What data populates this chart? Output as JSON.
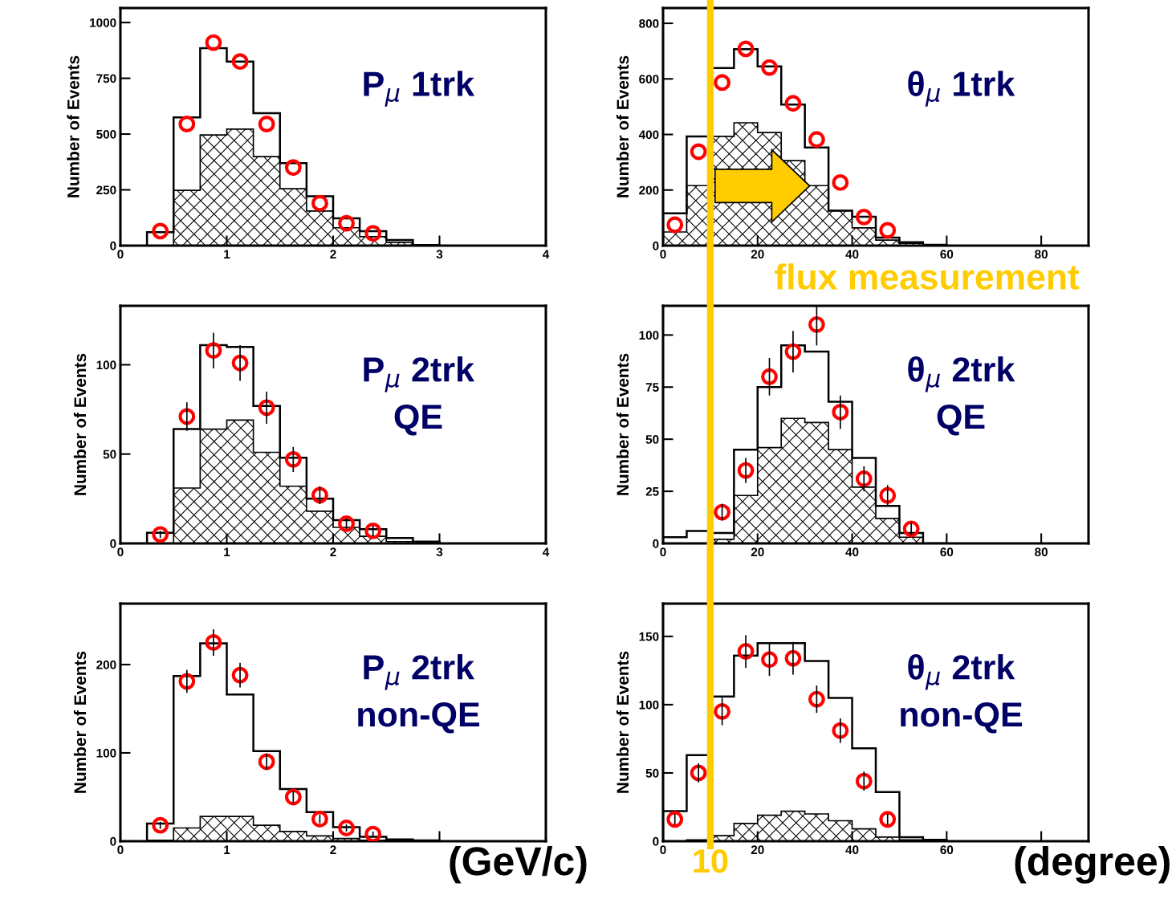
{
  "chart_data": [
    {
      "type": "histogram",
      "ylabel": "Number of Events",
      "annotations": [
        "P$_{μ}$ 1trk"
      ],
      "bins": [
        0.25,
        0.5,
        0.75,
        1.0,
        1.25,
        1.5,
        1.75,
        2.0,
        2.25,
        2.5,
        2.75,
        3.0
      ],
      "xlim": [
        0,
        4
      ],
      "xticks": [
        0,
        1,
        2,
        3,
        4
      ],
      "ylim": [
        0,
        1065
      ],
      "yticks": [
        0,
        250,
        500,
        750,
        1000
      ],
      "marker": "circle",
      "grid": false,
      "legend": false,
      "series": [
        {
          "type": "histogram",
          "color": "#000000",
          "values": [
            60,
            575,
            885,
            825,
            594,
            370,
            221,
            122,
            65,
            25,
            3
          ]
        },
        {
          "type": "histogram",
          "color": "#000000",
          "values": [
            0,
            248,
            496,
            522,
            399,
            255,
            155,
            80,
            40,
            15,
            3
          ]
        },
        {
          "type": "scatter",
          "color": "#ff0000",
          "x": [
            0.375,
            0.625,
            0.875,
            1.125,
            1.375,
            1.625,
            1.875,
            2.125,
            2.375
          ],
          "values": [
            65,
            545,
            910,
            825,
            545,
            350,
            190,
            100,
            55
          ]
        }
      ]
    },
    {
      "type": "histogram",
      "ylabel": "Number of Events",
      "annotations": [
        "θ$_{μ}$ 1trk",
        "flux measurement"
      ],
      "bins": [
        0,
        5,
        10,
        15,
        20,
        25,
        30,
        35,
        40,
        45,
        50,
        55,
        60
      ],
      "xlim": [
        0,
        90
      ],
      "xticks": [
        0,
        20,
        40,
        60,
        80
      ],
      "ylim": [
        0,
        855
      ],
      "yticks": [
        0,
        200,
        400,
        600,
        800
      ],
      "marker": "circle",
      "grid": false,
      "legend": false,
      "ref_lines": [
        {
          "axis": "x",
          "value": 10,
          "color": "#ffcc00"
        }
      ],
      "series": [
        {
          "type": "histogram",
          "color": "#000000",
          "values": [
            116,
            393,
            639,
            707,
            645,
            508,
            353,
            126,
            104,
            29,
            12,
            3
          ]
        },
        {
          "type": "histogram",
          "color": "#000000",
          "values": [
            49,
            216,
            393,
            442,
            407,
            306,
            216,
            126,
            64,
            20,
            8,
            2
          ]
        },
        {
          "type": "scatter",
          "color": "#ff0000",
          "x": [
            2.5,
            7.5,
            12.5,
            17.5,
            22.5,
            27.5,
            32.5,
            37.5,
            42.5,
            47.5
          ],
          "values": [
            75,
            338,
            587,
            708,
            641,
            512,
            382,
            227,
            103,
            55
          ]
        }
      ]
    },
    {
      "type": "histogram",
      "ylabel": "Number of Events",
      "annotations": [
        "P$_{μ}$ 2trk\nQE"
      ],
      "bins": [
        0.25,
        0.5,
        0.75,
        1.0,
        1.25,
        1.5,
        1.75,
        2.0,
        2.25,
        2.5,
        2.75,
        3.0
      ],
      "xlim": [
        0,
        4
      ],
      "xticks": [
        0,
        1,
        2,
        3,
        4
      ],
      "ylim": [
        0,
        133
      ],
      "yticks": [
        0,
        50,
        100
      ],
      "marker": "circle",
      "grid": false,
      "legend": false,
      "series": [
        {
          "type": "histogram",
          "color": "#000000",
          "values": [
            6,
            64,
            111,
            110,
            77,
            48,
            25,
            13,
            8,
            3,
            1
          ]
        },
        {
          "type": "histogram",
          "color": "#000000",
          "values": [
            0,
            31,
            64,
            69,
            51,
            32,
            18,
            9,
            4,
            1,
            0
          ]
        },
        {
          "type": "scatter",
          "color": "#ff0000",
          "x": [
            0.375,
            0.625,
            0.875,
            1.125,
            1.375,
            1.625,
            1.875,
            2.125,
            2.375
          ],
          "values": [
            5,
            71,
            108,
            101,
            76,
            47,
            27,
            11,
            7
          ],
          "errors": [
            2,
            8,
            10,
            10,
            9,
            7,
            5,
            3,
            3
          ]
        }
      ]
    },
    {
      "type": "histogram",
      "ylabel": "Number of Events",
      "annotations": [
        "θ$_{μ}$ 2trk\nQE"
      ],
      "bins": [
        0,
        5,
        10,
        15,
        20,
        25,
        30,
        35,
        40,
        45,
        50,
        55,
        60
      ],
      "xlim": [
        0,
        90
      ],
      "xticks": [
        0,
        20,
        40,
        60,
        80
      ],
      "ylim": [
        0,
        114
      ],
      "yticks": [
        0,
        25,
        50,
        75,
        100
      ],
      "marker": "circle",
      "grid": false,
      "legend": false,
      "ref_lines": [
        {
          "axis": "x",
          "value": 10,
          "color": "#ffcc00"
        }
      ],
      "series": [
        {
          "type": "histogram",
          "color": "#000000",
          "values": [
            3,
            6,
            5,
            45,
            75,
            95,
            92,
            68,
            41,
            18,
            5,
            0
          ]
        },
        {
          "color": "#000000",
          "values": [
            0,
            0,
            2,
            23,
            46,
            60,
            58,
            45,
            27,
            12,
            3,
            0
          ]
        },
        {
          "type": "scatter",
          "color": "#ff0000",
          "x": [
            12.5,
            17.5,
            22.5,
            27.5,
            32.5,
            37.5,
            42.5,
            47.5,
            52.5
          ],
          "values": [
            15,
            35,
            80,
            92,
            105,
            63,
            31,
            23,
            7
          ],
          "errors": [
            4,
            6,
            9,
            10,
            10,
            8,
            6,
            5,
            3
          ]
        }
      ]
    },
    {
      "type": "histogram",
      "ylabel": "Number of Events",
      "xlabel": "(GeV/c)",
      "annotations": [
        "P$_{μ}$ 2trk\nnon-QE"
      ],
      "bins": [
        0.25,
        0.5,
        0.75,
        1.0,
        1.25,
        1.5,
        1.75,
        2.0,
        2.25,
        2.5,
        2.75,
        3.0
      ],
      "xlim": [
        0,
        4
      ],
      "xticks": [
        0,
        1,
        2,
        {
          "value": 3,
          "label": null
        },
        {
          "value": 4,
          "label": null
        }
      ],
      "ylim": [
        0,
        269
      ],
      "yticks": [
        0,
        100,
        200
      ],
      "marker": "circle",
      "grid": false,
      "legend": false,
      "series": [
        {
          "type": "histogram",
          "color": "#000000",
          "values": [
            20,
            187,
            224,
            166,
            102,
            59,
            33,
            16,
            5,
            2,
            1
          ]
        },
        {
          "type": "histogram",
          "color": "#000000",
          "values": [
            1,
            15,
            28,
            28,
            18,
            11,
            6,
            3,
            1,
            0,
            0
          ]
        },
        {
          "type": "scatter",
          "color": "#ff0000",
          "x": [
            0.375,
            0.625,
            0.875,
            1.125,
            1.375,
            1.625,
            1.875,
            2.125,
            2.375
          ],
          "values": [
            18,
            181,
            225,
            188,
            90,
            50,
            25,
            15,
            8
          ],
          "errors": [
            4,
            13,
            15,
            14,
            9,
            7,
            5,
            4,
            3
          ]
        }
      ]
    },
    {
      "type": "histogram",
      "ylabel": "Number of Events",
      "xlabel": "(degree)",
      "annotations": [
        "θ$_{μ}$ 2trk\nnon-QE"
      ],
      "bins": [
        0,
        5,
        10,
        15,
        20,
        25,
        30,
        35,
        40,
        45,
        50,
        55,
        60
      ],
      "xlim": [
        0,
        90
      ],
      "xticks": [
        0,
        20,
        40,
        60,
        {
          "value": 80,
          "label": null
        }
      ],
      "ylim": [
        0,
        174
      ],
      "yticks": [
        0,
        50,
        100,
        150
      ],
      "marker": "circle",
      "grid": false,
      "legend": false,
      "ref_lines": [
        {
          "axis": "x",
          "value": 10,
          "color": "#ffcc00",
          "label": "10"
        }
      ],
      "series": [
        {
          "type": "histogram",
          "color": "#000000",
          "values": [
            22,
            63,
            106,
            136,
            145,
            145,
            132,
            105,
            68,
            36,
            3,
            1
          ]
        },
        {
          "type": "histogram",
          "color": "#000000",
          "values": [
            0,
            1,
            4,
            13,
            19,
            22,
            20,
            15,
            9,
            3,
            1,
            0
          ]
        },
        {
          "type": "scatter",
          "color": "#ff0000",
          "x": [
            2.5,
            7.5,
            12.5,
            17.5,
            22.5,
            27.5,
            32.5,
            37.5,
            42.5,
            47.5
          ],
          "values": [
            16,
            50,
            95,
            139,
            133,
            134,
            104,
            81,
            44,
            16
          ],
          "errors": [
            4,
            7,
            10,
            12,
            12,
            12,
            10,
            9,
            7,
            4
          ]
        }
      ]
    }
  ]
}
